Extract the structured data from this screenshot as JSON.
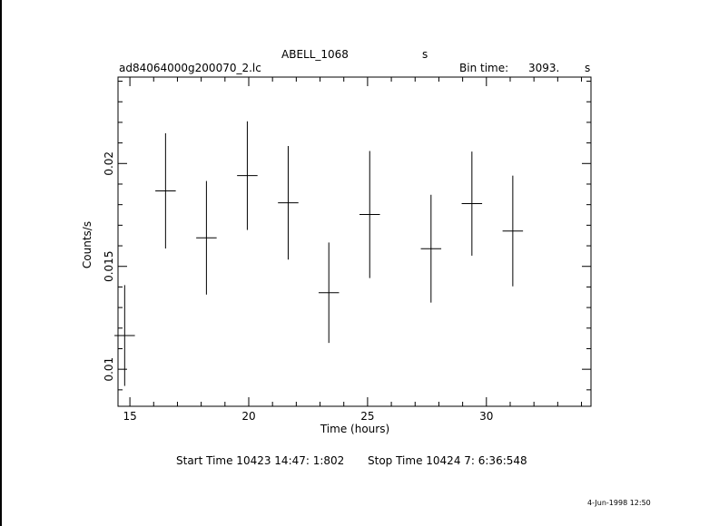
{
  "header": {
    "object": "ABELL_1068",
    "object_suffix": "s",
    "filename": "ad84064000g200070_2.lc",
    "bin_label": "Bin time:",
    "bin_value": "3093.",
    "bin_unit": "s"
  },
  "footer": {
    "start": "Start Time 10423 14:47: 1:802",
    "stop": "Stop Time 10424  7: 6:36:548",
    "stamp": "4-Jun-1998 12:50"
  },
  "chart_data": {
    "type": "scatter",
    "title": "ABELL_1068",
    "xlabel": "Time (hours)",
    "ylabel": "Counts/s",
    "xlim": [
      14.5,
      34.4
    ],
    "ylim": [
      0.0082,
      0.0242
    ],
    "xticks": [
      15,
      20,
      25,
      30
    ],
    "xtick_labels": [
      "15",
      "20",
      "25",
      "30"
    ],
    "yticks": [
      0.01,
      0.015,
      0.02
    ],
    "ytick_labels": [
      "0.01",
      "0.015",
      "0.02"
    ],
    "grid": false,
    "series": [
      {
        "points": [
          {
            "x": 14.78,
            "xerr": 0.43,
            "y": 0.01164,
            "yerr": 0.00245
          },
          {
            "x": 16.5,
            "xerr": 0.43,
            "y": 0.01867,
            "yerr": 0.0028
          },
          {
            "x": 18.22,
            "xerr": 0.43,
            "y": 0.01639,
            "yerr": 0.00276
          },
          {
            "x": 19.94,
            "xerr": 0.43,
            "y": 0.01941,
            "yerr": 0.00264
          },
          {
            "x": 21.66,
            "xerr": 0.43,
            "y": 0.01809,
            "yerr": 0.00276
          },
          {
            "x": 23.37,
            "xerr": 0.43,
            "y": 0.01372,
            "yerr": 0.00244
          },
          {
            "x": 25.09,
            "xerr": 0.43,
            "y": 0.01752,
            "yerr": 0.00309
          },
          {
            "x": 27.67,
            "xerr": 0.43,
            "y": 0.01586,
            "yerr": 0.00262
          },
          {
            "x": 29.39,
            "xerr": 0.43,
            "y": 0.01805,
            "yerr": 0.00253
          },
          {
            "x": 31.11,
            "xerr": 0.43,
            "y": 0.01672,
            "yerr": 0.00269
          }
        ]
      }
    ]
  }
}
